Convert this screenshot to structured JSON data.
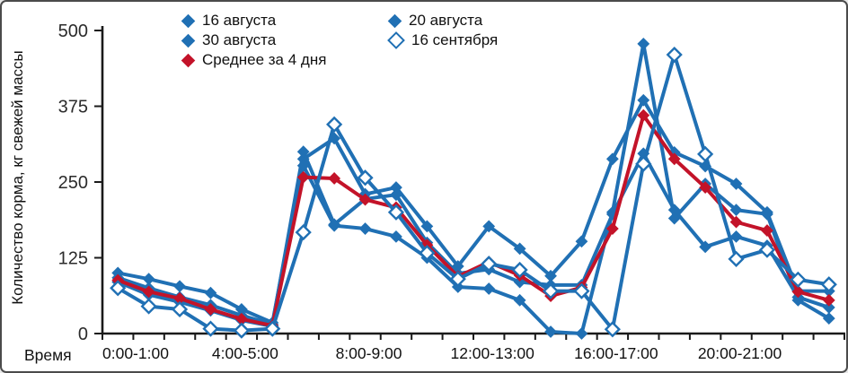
{
  "figure": {
    "background": "#ffffff",
    "border_color": "#4b4b4b",
    "axis_color": "#1a1a1a",
    "tick_label_color": "#2b2b2b"
  },
  "chart_data": {
    "type": "line",
    "title": "",
    "xlabel_prefix": "Время",
    "ylabel": "Количество корма, кг свежей массы",
    "ylim": [
      0,
      500
    ],
    "yticks": [
      0,
      125,
      250,
      375,
      500
    ],
    "x_bins_count": 24,
    "xtick_labels": [
      {
        "at": 0,
        "label": "0:00-1:00"
      },
      {
        "at": 4,
        "label": "4:00-5:00"
      },
      {
        "at": 8,
        "label": "8:00-9:00"
      },
      {
        "at": 12,
        "label": "12:00-13:00"
      },
      {
        "at": 16,
        "label": "16:00-17:00"
      },
      {
        "at": 20,
        "label": "20:00-21:00"
      }
    ],
    "series": [
      {
        "name": "16 августа",
        "color": "#2070B4",
        "marker": "filled-diamond",
        "values": [
          100,
          90,
          78,
          67,
          40,
          18,
          288,
          322,
          230,
          241,
          177,
          111,
          177,
          140,
          95,
          152,
          288,
          385,
          299,
          276,
          247,
          200,
          70,
          70
        ]
      },
      {
        "name": "20 августа",
        "color": "#2070B4",
        "marker": "filled-diamond",
        "values": [
          92,
          75,
          60,
          47,
          30,
          15,
          300,
          180,
          222,
          229,
          150,
          99,
          106,
          85,
          80,
          80,
          197,
          297,
          204,
          143,
          160,
          145,
          60,
          43
        ]
      },
      {
        "name": "30 августа",
        "color": "#2070B4",
        "marker": "filled-diamond",
        "values": [
          85,
          64,
          52,
          38,
          22,
          12,
          277,
          178,
          173,
          160,
          125,
          77,
          74,
          55,
          3,
          0,
          200,
          478,
          190,
          247,
          204,
          197,
          55,
          25
        ]
      },
      {
        "name": "16 сентября",
        "color": "#2070B4",
        "marker": "open-diamond",
        "values": [
          75,
          45,
          40,
          8,
          5,
          8,
          167,
          345,
          257,
          200,
          133,
          90,
          115,
          105,
          70,
          70,
          7,
          280,
          460,
          296,
          123,
          138,
          89,
          81
        ]
      },
      {
        "name": "Среднее за 4 дня",
        "color": "#C31329",
        "marker": "filled-diamond",
        "values": [
          88,
          69,
          58,
          40,
          24,
          13,
          258,
          256,
          221,
          208,
          146,
          94,
          118,
          96,
          62,
          76,
          173,
          360,
          288,
          241,
          184,
          170,
          69,
          55
        ]
      }
    ],
    "legend": {
      "position": "top-inside",
      "items": [
        {
          "label": "16 августа",
          "marker": "filled-diamond",
          "color": "#2070B4",
          "column": 1
        },
        {
          "label": "30 августа",
          "marker": "filled-diamond",
          "color": "#2070B4",
          "column": 1
        },
        {
          "label": "Среднее за 4 дня",
          "marker": "filled-diamond",
          "color": "#C31329",
          "column": 1
        },
        {
          "label": "20 августа",
          "marker": "filled-diamond",
          "color": "#2070B4",
          "column": 2
        },
        {
          "label": "16 сентября",
          "marker": "open-diamond",
          "color": "#2070B4",
          "column": 2
        }
      ]
    }
  }
}
